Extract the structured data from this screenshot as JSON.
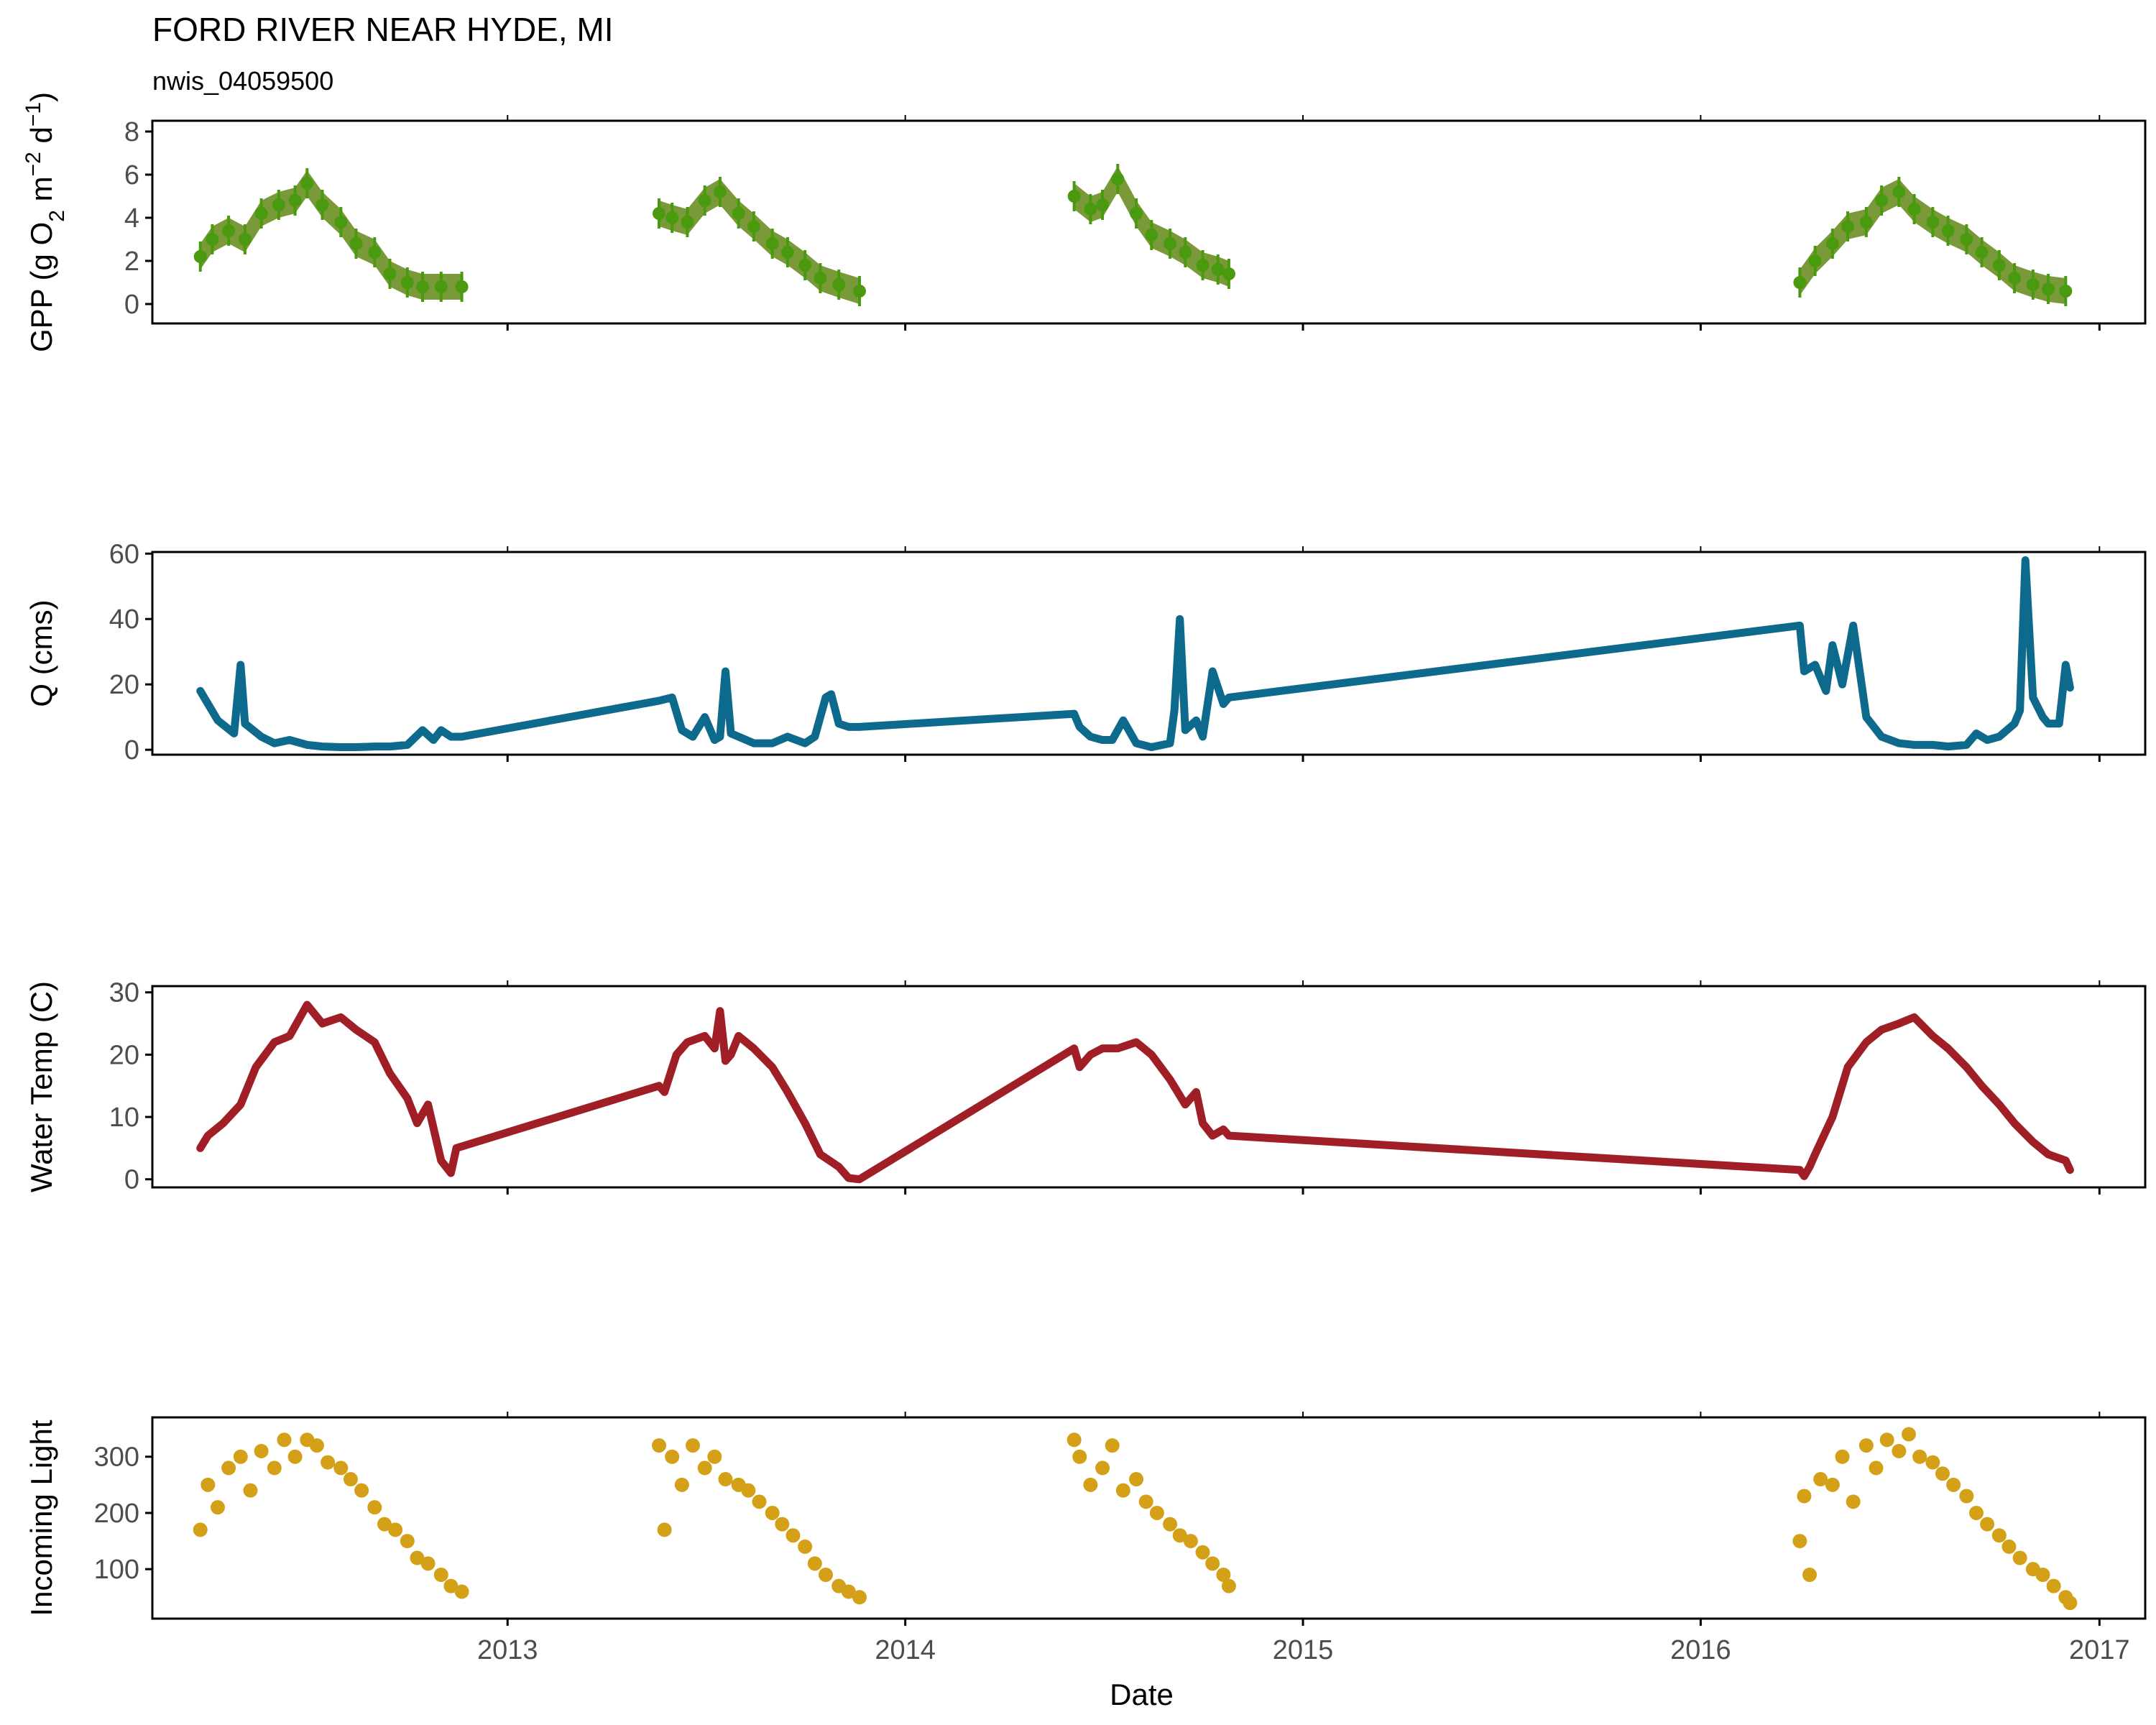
{
  "header": {
    "title": "FORD RIVER NEAR HYDE, MI",
    "subtitle": "nwis_04059500"
  },
  "colors": {
    "gpp_band": "#6b8e23",
    "gpp_point": "#4a9a10",
    "discharge": "#0e6a8c",
    "water_temp": "#a01f26",
    "light": "#d4a017",
    "axis": "#000000",
    "tick_label": "#4d4d4d"
  },
  "chart_data": {
    "type": "multi-panel time series",
    "shared_x": {
      "label": "Date",
      "xlim": [
        "2012-02-10",
        "2017-02-12"
      ],
      "ticks": [
        "2013-01-01",
        "2014-01-01",
        "2015-01-01",
        "2016-01-01",
        "2017-01-01"
      ],
      "tick_labels": [
        "2013",
        "2014",
        "2015",
        "2016",
        "2017"
      ]
    },
    "panels": [
      {
        "id": "gpp",
        "type": "scatter with error band",
        "ylabel": "GPP (g O2 m-2 d-1)",
        "ylabel_parts": [
          "GPP (g  O",
          "2",
          " m",
          "−2",
          " d",
          "−1",
          ")"
        ],
        "ylim": [
          -0.9,
          8.5
        ],
        "yticks": [
          0,
          2,
          4,
          6,
          8
        ],
        "segments": [
          {
            "x": [
              "2012-03-25",
              "2012-04-05",
              "2012-04-20",
              "2012-05-05",
              "2012-05-20",
              "2012-06-05",
              "2012-06-20",
              "2012-07-01",
              "2012-07-15",
              "2012-08-01",
              "2012-08-15",
              "2012-09-01",
              "2012-09-15",
              "2012-10-01",
              "2012-10-15",
              "2012-11-01",
              "2012-11-20"
            ],
            "y": [
              2.2,
              3.0,
              3.4,
              3.0,
              4.2,
              4.6,
              4.8,
              5.6,
              4.6,
              3.8,
              2.8,
              2.4,
              1.4,
              1.0,
              0.8,
              0.8,
              0.8
            ]
          },
          {
            "x": [
              "2013-05-20",
              "2013-06-01",
              "2013-06-15",
              "2013-07-01",
              "2013-07-15",
              "2013-08-01",
              "2013-08-15",
              "2013-09-01",
              "2013-09-15",
              "2013-10-01",
              "2013-10-15",
              "2013-11-01",
              "2013-11-20"
            ],
            "y": [
              4.2,
              4.0,
              3.8,
              4.8,
              5.2,
              4.2,
              3.6,
              2.8,
              2.4,
              1.8,
              1.2,
              0.9,
              0.6
            ]
          },
          {
            "x": [
              "2014-06-05",
              "2014-06-20",
              "2014-07-01",
              "2014-07-15",
              "2014-08-01",
              "2014-08-15",
              "2014-09-01",
              "2014-09-15",
              "2014-10-01",
              "2014-10-15",
              "2014-10-25"
            ],
            "y": [
              5.0,
              4.4,
              4.6,
              5.8,
              4.2,
              3.2,
              2.8,
              2.4,
              1.8,
              1.6,
              1.4
            ]
          },
          {
            "x": [
              "2016-04-01",
              "2016-04-15",
              "2016-05-01",
              "2016-05-15",
              "2016-06-01",
              "2016-06-15",
              "2016-07-01",
              "2016-07-15",
              "2016-08-01",
              "2016-08-15",
              "2016-09-01",
              "2016-09-15",
              "2016-10-01",
              "2016-10-15",
              "2016-11-01",
              "2016-11-15",
              "2016-12-01"
            ],
            "y": [
              1.0,
              2.0,
              2.8,
              3.6,
              3.8,
              4.8,
              5.2,
              4.4,
              3.8,
              3.4,
              3.0,
              2.4,
              1.8,
              1.2,
              0.9,
              0.7,
              0.6
            ]
          }
        ]
      },
      {
        "id": "discharge",
        "type": "line",
        "ylabel": "Q (cms)",
        "ylim": [
          -1.5,
          60.5
        ],
        "yticks": [
          0,
          20,
          40,
          60
        ],
        "x": [
          "2012-03-25",
          "2012-04-10",
          "2012-04-25",
          "2012-05-01",
          "2012-05-05",
          "2012-05-20",
          "2012-06-01",
          "2012-06-15",
          "2012-07-01",
          "2012-07-15",
          "2012-08-01",
          "2012-08-15",
          "2012-09-01",
          "2012-09-15",
          "2012-10-01",
          "2012-10-15",
          "2012-10-25",
          "2012-11-01",
          "2012-11-10",
          "2012-11-20",
          "2013-05-20",
          "2013-06-01",
          "2013-06-10",
          "2013-06-20",
          "2013-07-01",
          "2013-07-10",
          "2013-07-15",
          "2013-07-20",
          "2013-07-25",
          "2013-08-01",
          "2013-08-15",
          "2013-09-01",
          "2013-09-15",
          "2013-10-01",
          "2013-10-10",
          "2013-10-20",
          "2013-10-25",
          "2013-11-01",
          "2013-11-10",
          "2013-11-20",
          "2014-06-05",
          "2014-06-10",
          "2014-06-20",
          "2014-07-01",
          "2014-07-10",
          "2014-07-20",
          "2014-08-01",
          "2014-08-15",
          "2014-09-01",
          "2014-09-05",
          "2014-09-10",
          "2014-09-15",
          "2014-09-25",
          "2014-10-01",
          "2014-10-10",
          "2014-10-20",
          "2014-10-25",
          "2016-04-01",
          "2016-04-05",
          "2016-04-15",
          "2016-04-25",
          "2016-05-01",
          "2016-05-10",
          "2016-05-20",
          "2016-06-01",
          "2016-06-15",
          "2016-07-01",
          "2016-07-15",
          "2016-08-01",
          "2016-08-15",
          "2016-09-01",
          "2016-09-10",
          "2016-09-20",
          "2016-10-01",
          "2016-10-15",
          "2016-10-20",
          "2016-10-25",
          "2016-11-01",
          "2016-11-10",
          "2016-11-15",
          "2016-11-25",
          "2016-12-01",
          "2016-12-05"
        ],
        "y": [
          18,
          9,
          5,
          26,
          8,
          4,
          2,
          3,
          1.5,
          1,
          0.8,
          0.8,
          1,
          1,
          1.5,
          6,
          3,
          6,
          4,
          4,
          15,
          16,
          6,
          4,
          10,
          3,
          4,
          24,
          5,
          4,
          2,
          2,
          4,
          2,
          4,
          16,
          17,
          8,
          7,
          7,
          11,
          7,
          4,
          3,
          3,
          9,
          2,
          0.8,
          2,
          12,
          40,
          6,
          9,
          4,
          24,
          14,
          16,
          38,
          24,
          26,
          18,
          32,
          20,
          38,
          10,
          4,
          2,
          1.5,
          1.5,
          1,
          1.5,
          5,
          3,
          4,
          8,
          12,
          58,
          16,
          10,
          8,
          8,
          26,
          19
        ]
      },
      {
        "id": "water_temp",
        "type": "line",
        "ylabel": "Water Temp (C)",
        "ylim": [
          -1.3,
          31
        ],
        "yticks": [
          0,
          10,
          20,
          30
        ],
        "x": [
          "2012-03-25",
          "2012-04-01",
          "2012-04-15",
          "2012-05-01",
          "2012-05-15",
          "2012-06-01",
          "2012-06-15",
          "2012-07-01",
          "2012-07-15",
          "2012-08-01",
          "2012-08-15",
          "2012-09-01",
          "2012-09-15",
          "2012-10-01",
          "2012-10-10",
          "2012-10-20",
          "2012-11-01",
          "2012-11-10",
          "2012-11-15",
          "2013-05-20",
          "2013-05-25",
          "2013-06-05",
          "2013-06-15",
          "2013-07-01",
          "2013-07-10",
          "2013-07-15",
          "2013-07-20",
          "2013-07-25",
          "2013-08-01",
          "2013-08-15",
          "2013-09-01",
          "2013-09-15",
          "2013-10-01",
          "2013-10-15",
          "2013-11-01",
          "2013-11-10",
          "2013-11-20",
          "2014-06-05",
          "2014-06-10",
          "2014-06-20",
          "2014-07-01",
          "2014-07-15",
          "2014-08-01",
          "2014-08-15",
          "2014-09-01",
          "2014-09-15",
          "2014-09-25",
          "2014-10-01",
          "2014-10-10",
          "2014-10-20",
          "2014-10-25",
          "2016-04-01",
          "2016-04-05",
          "2016-04-10",
          "2016-04-15",
          "2016-05-01",
          "2016-05-15",
          "2016-06-01",
          "2016-06-15",
          "2016-07-01",
          "2016-07-15",
          "2016-08-01",
          "2016-08-15",
          "2016-09-01",
          "2016-09-15",
          "2016-10-01",
          "2016-10-15",
          "2016-11-01",
          "2016-11-15",
          "2016-12-01",
          "2016-12-05"
        ],
        "y": [
          5,
          7,
          9,
          12,
          18,
          22,
          23,
          28,
          25,
          26,
          24,
          22,
          17,
          13,
          9,
          12,
          3,
          1,
          5,
          15,
          14,
          20,
          22,
          23,
          21,
          27,
          19,
          20,
          23,
          21,
          18,
          14,
          9,
          4,
          2,
          0.2,
          0,
          21,
          18,
          20,
          21,
          21,
          22,
          20,
          16,
          12,
          14,
          9,
          7,
          8,
          7,
          1.5,
          0.5,
          2,
          4,
          10,
          18,
          22,
          24,
          25,
          26,
          23,
          21,
          18,
          15,
          12,
          9,
          6,
          4,
          3,
          1.5
        ]
      },
      {
        "id": "incoming_light",
        "type": "scatter",
        "ylabel": "Incoming Light",
        "ylim": [
          12,
          370
        ],
        "yticks": [
          100,
          200,
          300
        ],
        "segments": [
          {
            "x": [
              "2012-03-25",
              "2012-04-01",
              "2012-04-10",
              "2012-04-20",
              "2012-05-01",
              "2012-05-10",
              "2012-05-20",
              "2012-06-01",
              "2012-06-10",
              "2012-06-20",
              "2012-07-01",
              "2012-07-10",
              "2012-07-20",
              "2012-08-01",
              "2012-08-10",
              "2012-08-20",
              "2012-09-01",
              "2012-09-10",
              "2012-09-20",
              "2012-10-01",
              "2012-10-10",
              "2012-10-20",
              "2012-11-01",
              "2012-11-10",
              "2012-11-20"
            ],
            "y": [
              170,
              250,
              210,
              280,
              300,
              240,
              310,
              280,
              330,
              300,
              330,
              320,
              290,
              280,
              260,
              240,
              210,
              180,
              170,
              150,
              120,
              110,
              90,
              70,
              60
            ]
          },
          {
            "x": [
              "2013-05-20",
              "2013-05-25",
              "2013-06-01",
              "2013-06-10",
              "2013-06-20",
              "2013-07-01",
              "2013-07-10",
              "2013-07-20",
              "2013-08-01",
              "2013-08-10",
              "2013-08-20",
              "2013-09-01",
              "2013-09-10",
              "2013-09-20",
              "2013-10-01",
              "2013-10-10",
              "2013-10-20",
              "2013-11-01",
              "2013-11-10",
              "2013-11-20"
            ],
            "y": [
              320,
              170,
              300,
              250,
              320,
              280,
              300,
              260,
              250,
              240,
              220,
              200,
              180,
              160,
              140,
              110,
              90,
              70,
              60,
              50
            ]
          },
          {
            "x": [
              "2014-06-05",
              "2014-06-10",
              "2014-06-20",
              "2014-07-01",
              "2014-07-10",
              "2014-07-20",
              "2014-08-01",
              "2014-08-10",
              "2014-08-20",
              "2014-09-01",
              "2014-09-10",
              "2014-09-20",
              "2014-10-01",
              "2014-10-10",
              "2014-10-20",
              "2014-10-25"
            ],
            "y": [
              330,
              300,
              250,
              280,
              320,
              240,
              260,
              220,
              200,
              180,
              160,
              150,
              130,
              110,
              90,
              70
            ]
          },
          {
            "x": [
              "2016-04-01",
              "2016-04-05",
              "2016-04-10",
              "2016-04-20",
              "2016-05-01",
              "2016-05-10",
              "2016-05-20",
              "2016-06-01",
              "2016-06-10",
              "2016-06-20",
              "2016-07-01",
              "2016-07-10",
              "2016-07-20",
              "2016-08-01",
              "2016-08-10",
              "2016-08-20",
              "2016-09-01",
              "2016-09-10",
              "2016-09-20",
              "2016-10-01",
              "2016-10-10",
              "2016-10-20",
              "2016-11-01",
              "2016-11-10",
              "2016-11-20",
              "2016-12-01",
              "2016-12-05"
            ],
            "y": [
              150,
              230,
              90,
              260,
              250,
              300,
              220,
              320,
              280,
              330,
              310,
              340,
              300,
              290,
              270,
              250,
              230,
              200,
              180,
              160,
              140,
              120,
              100,
              90,
              70,
              50,
              40
            ]
          }
        ]
      }
    ]
  }
}
